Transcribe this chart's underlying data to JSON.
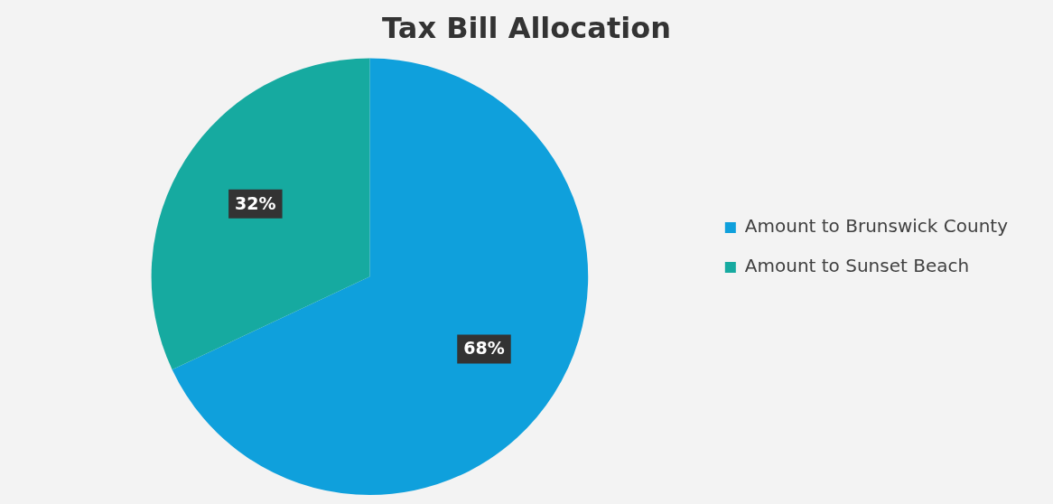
{
  "chart_data": {
    "type": "pie",
    "title": "Tax Bill Allocation",
    "categories": [
      "Amount to Brunswick County",
      "Amount to Sunset Beach"
    ],
    "values": [
      68,
      32
    ],
    "colors": [
      "#0fa0dc",
      "#16aaa0"
    ],
    "value_labels": [
      "68%",
      "32%"
    ],
    "legend": "right"
  }
}
